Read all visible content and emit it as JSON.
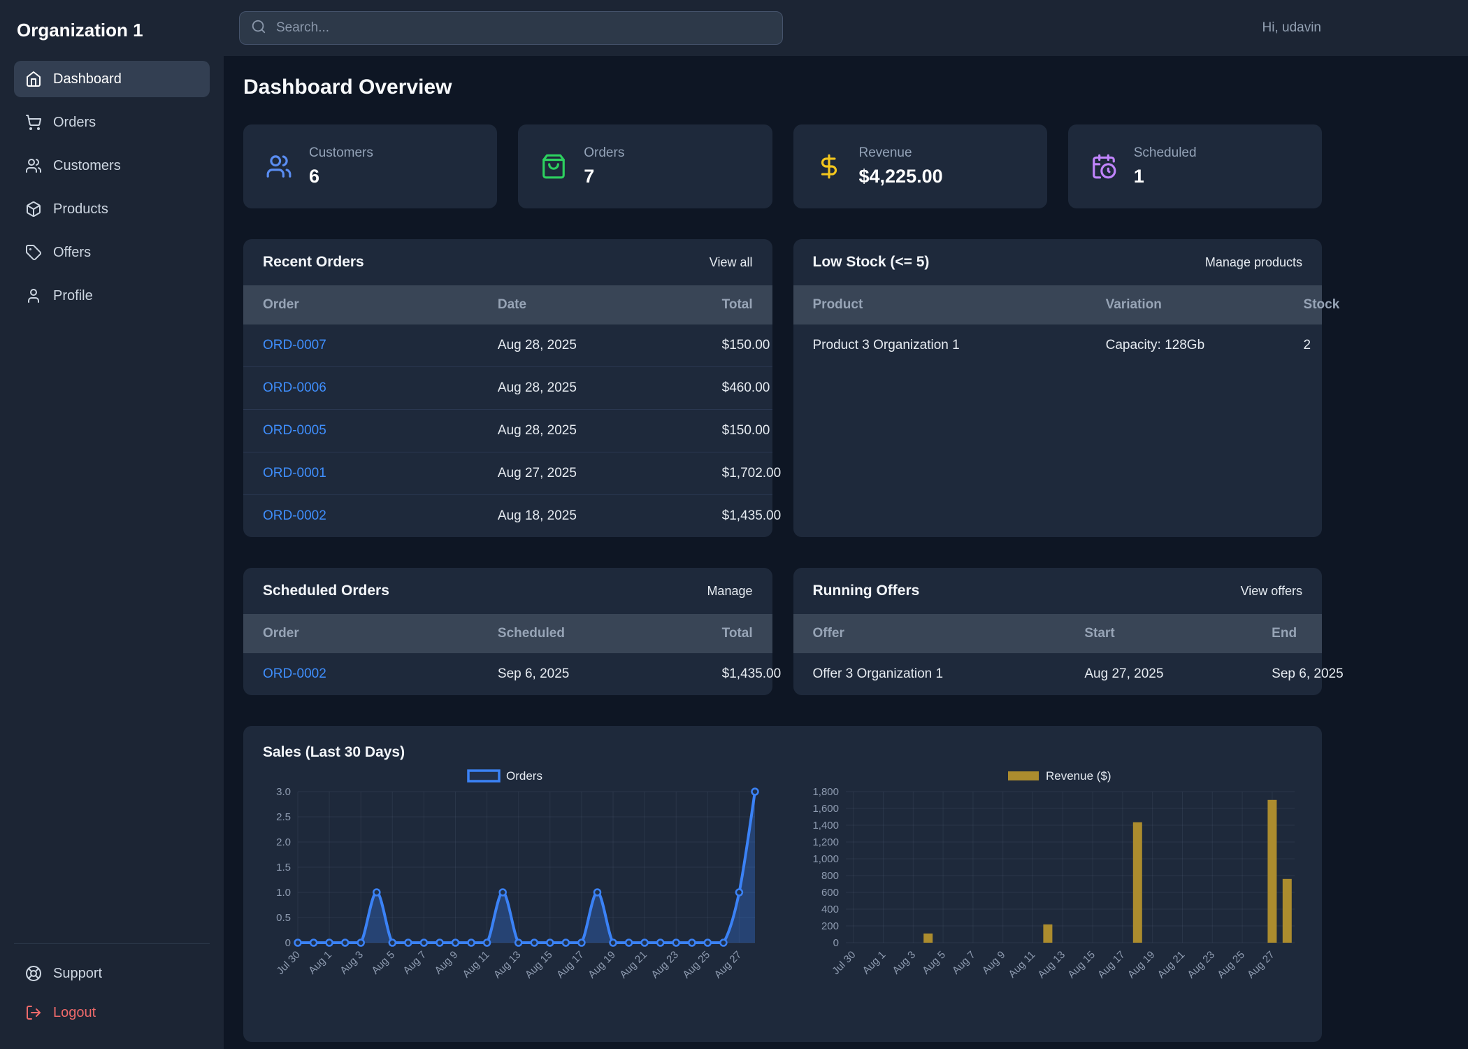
{
  "sidebar": {
    "org_name": "Organization 1",
    "items": [
      {
        "id": "dashboard",
        "label": "Dashboard",
        "icon": "home-icon",
        "active": true
      },
      {
        "id": "orders",
        "label": "Orders",
        "icon": "shopping-cart-icon",
        "active": false
      },
      {
        "id": "customers",
        "label": "Customers",
        "icon": "users-icon",
        "active": false
      },
      {
        "id": "products",
        "label": "Products",
        "icon": "package-icon",
        "active": false
      },
      {
        "id": "offers",
        "label": "Offers",
        "icon": "tag-icon",
        "active": false
      },
      {
        "id": "profile",
        "label": "Profile",
        "icon": "user-icon",
        "active": false
      }
    ],
    "footer_items": [
      {
        "id": "support",
        "label": "Support",
        "icon": "life-buoy-icon",
        "danger": false
      },
      {
        "id": "logout",
        "label": "Logout",
        "icon": "log-out-icon",
        "danger": true
      }
    ]
  },
  "topbar": {
    "search_placeholder": "Search...",
    "greeting": "Hi, udavin"
  },
  "page": {
    "title": "Dashboard Overview"
  },
  "stats": [
    {
      "label": "Customers",
      "value": "6",
      "icon": "users-icon",
      "color": "#5a8df2"
    },
    {
      "label": "Orders",
      "value": "7",
      "icon": "shopping-bag-icon",
      "color": "#2dd05f"
    },
    {
      "label": "Revenue",
      "value": "$4,225.00",
      "icon": "dollar-icon",
      "color": "#f3c61d"
    },
    {
      "label": "Scheduled",
      "value": "1",
      "icon": "calendar-clock-icon",
      "color": "#c084fc"
    }
  ],
  "panels": {
    "recent_orders": {
      "title": "Recent Orders",
      "action": "View all",
      "columns": [
        "Order",
        "Date",
        "Total"
      ],
      "align": [
        "l",
        "l",
        "r"
      ],
      "link_col": 0,
      "rows": [
        [
          "ORD-0007",
          "Aug 28, 2025",
          "$150.00"
        ],
        [
          "ORD-0006",
          "Aug 28, 2025",
          "$460.00"
        ],
        [
          "ORD-0005",
          "Aug 28, 2025",
          "$150.00"
        ],
        [
          "ORD-0001",
          "Aug 27, 2025",
          "$1,702.00"
        ],
        [
          "ORD-0002",
          "Aug 18, 2025",
          "$1,435.00"
        ]
      ]
    },
    "low_stock": {
      "title": "Low Stock (<= 5)",
      "action": "Manage products",
      "columns": [
        "Product",
        "Variation",
        "Stock"
      ],
      "align": [
        "l",
        "l",
        "r"
      ],
      "link_col": -1,
      "rows": [
        [
          "Product 3 Organization 1",
          "Capacity: 128Gb",
          "2"
        ]
      ]
    },
    "scheduled_orders": {
      "title": "Scheduled Orders",
      "action": "Manage",
      "columns": [
        "Order",
        "Scheduled",
        "Total"
      ],
      "align": [
        "l",
        "l",
        "r"
      ],
      "link_col": 0,
      "rows": [
        [
          "ORD-0002",
          "Sep 6, 2025",
          "$1,435.00"
        ]
      ]
    },
    "running_offers": {
      "title": "Running Offers",
      "action": "View offers",
      "columns": [
        "Offer",
        "Start",
        "End"
      ],
      "align": [
        "l",
        "l",
        "l"
      ],
      "link_col": -1,
      "rows": [
        [
          "Offer 3 Organization 1",
          "Aug 27, 2025",
          "Sep 6, 2025"
        ]
      ]
    },
    "sales": {
      "title": "Sales (Last 30 Days)"
    }
  },
  "chart_data": [
    {
      "type": "line",
      "name": "Orders",
      "legend": "Orders",
      "color": "#3b82f6",
      "fill": "rgba(59,130,246,0.30)",
      "x": [
        "Jul 30",
        "Jul 31",
        "Aug 1",
        "Aug 2",
        "Aug 3",
        "Aug 4",
        "Aug 5",
        "Aug 6",
        "Aug 7",
        "Aug 8",
        "Aug 9",
        "Aug 10",
        "Aug 11",
        "Aug 12",
        "Aug 13",
        "Aug 14",
        "Aug 15",
        "Aug 16",
        "Aug 17",
        "Aug 18",
        "Aug 19",
        "Aug 20",
        "Aug 21",
        "Aug 22",
        "Aug 23",
        "Aug 24",
        "Aug 25",
        "Aug 26",
        "Aug 27",
        "Aug 28"
      ],
      "values": [
        0,
        0,
        0,
        0,
        0,
        1,
        0,
        0,
        0,
        0,
        0,
        0,
        0,
        1,
        0,
        0,
        0,
        0,
        0,
        1,
        0,
        0,
        0,
        0,
        0,
        0,
        0,
        0,
        1,
        3
      ],
      "ylim": [
        0,
        3
      ],
      "ytick_labels": [
        "0",
        "0.5",
        "1.0",
        "1.5",
        "2.0",
        "2.5",
        "3.0"
      ],
      "tick_every": 2,
      "grid": true,
      "legend_position": "top-center"
    },
    {
      "type": "bar",
      "name": "Revenue ($)",
      "legend": "Revenue ($)",
      "color": "#ac8c2e",
      "x": [
        "Jul 30",
        "Jul 31",
        "Aug 1",
        "Aug 2",
        "Aug 3",
        "Aug 4",
        "Aug 5",
        "Aug 6",
        "Aug 7",
        "Aug 8",
        "Aug 9",
        "Aug 10",
        "Aug 11",
        "Aug 12",
        "Aug 13",
        "Aug 14",
        "Aug 15",
        "Aug 16",
        "Aug 17",
        "Aug 18",
        "Aug 19",
        "Aug 20",
        "Aug 21",
        "Aug 22",
        "Aug 23",
        "Aug 24",
        "Aug 25",
        "Aug 26",
        "Aug 27",
        "Aug 28"
      ],
      "values": [
        0,
        0,
        0,
        0,
        0,
        110,
        0,
        0,
        0,
        0,
        0,
        0,
        0,
        218,
        0,
        0,
        0,
        0,
        0,
        1435,
        0,
        0,
        0,
        0,
        0,
        0,
        0,
        0,
        1702,
        760
      ],
      "ylim": [
        0,
        1800
      ],
      "ytick_labels": [
        "0",
        "200",
        "400",
        "600",
        "800",
        "1,000",
        "1,200",
        "1,400",
        "1,600",
        "1,800"
      ],
      "tick_every": 2,
      "grid": true,
      "legend_position": "top-center"
    }
  ]
}
